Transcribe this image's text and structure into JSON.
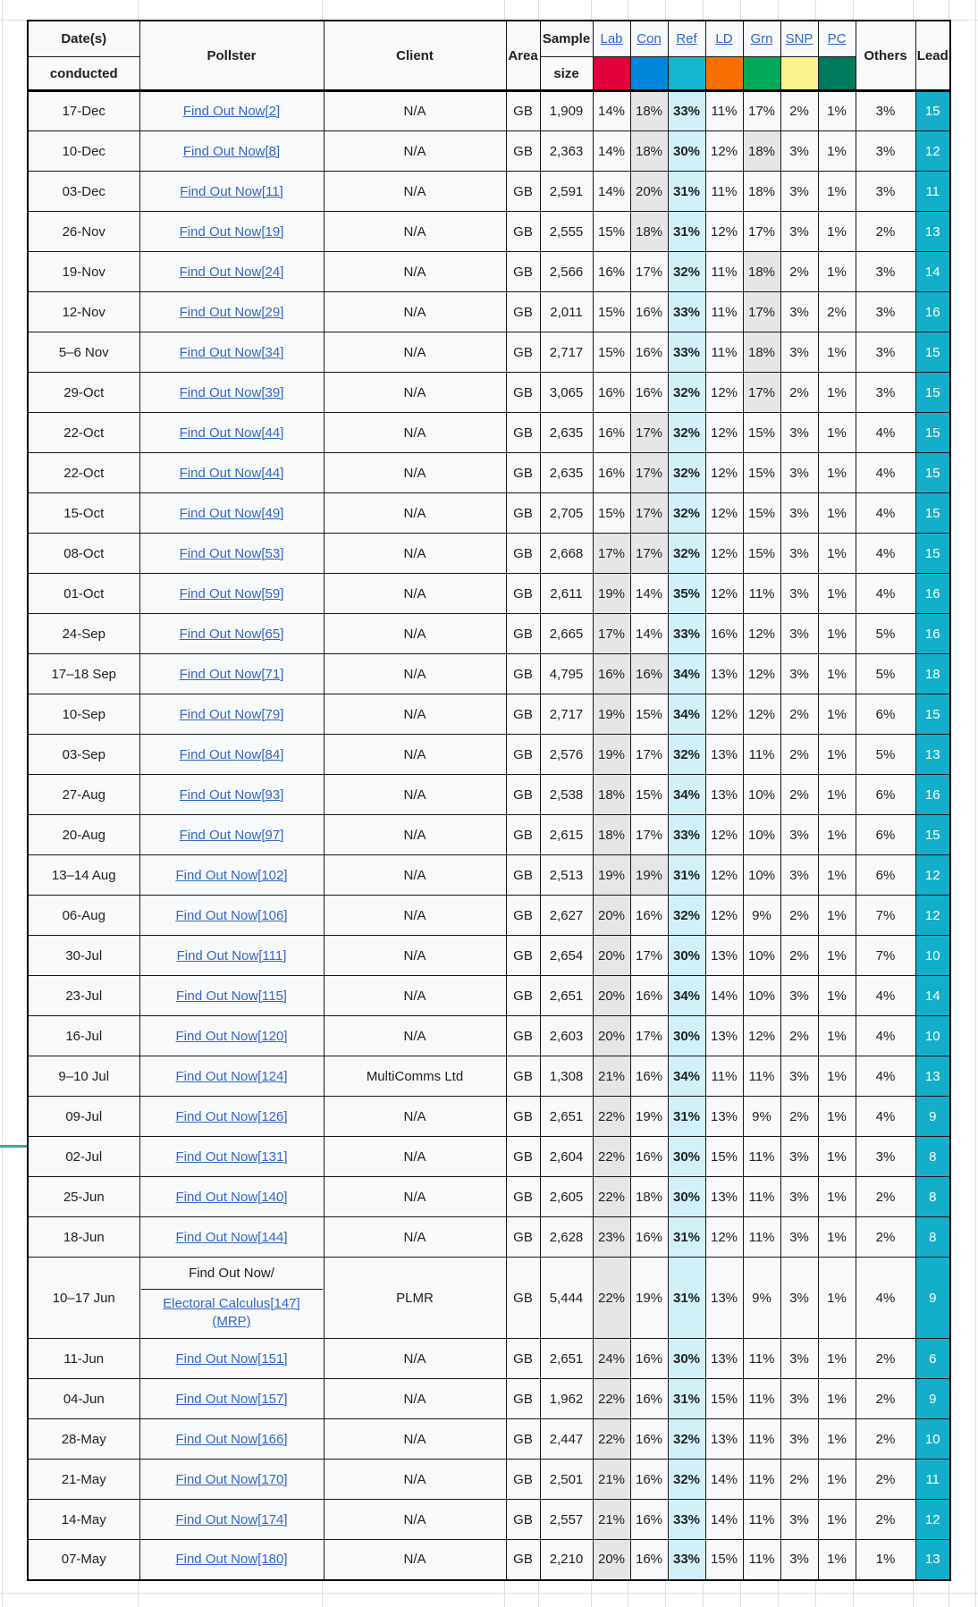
{
  "table": {
    "headers": {
      "dates_line1": "Date(s)",
      "dates_line2": "conducted",
      "pollster": "Pollster",
      "client": "Client",
      "area": "Area",
      "sample_line1": "Sample",
      "sample_line2": "size",
      "others": "Others",
      "lead": "Lead"
    },
    "parties": [
      {
        "key": "lab",
        "label": "Lab",
        "color": "#E4003B"
      },
      {
        "key": "con",
        "label": "Con",
        "color": "#0087DC"
      },
      {
        "key": "ref",
        "label": "Ref",
        "color": "#12B6CF"
      },
      {
        "key": "ld",
        "label": "LD",
        "color": "#F97000"
      },
      {
        "key": "grn",
        "label": "Grn",
        "color": "#02A95B"
      },
      {
        "key": "snp",
        "label": "SNP",
        "color": "#FDF38E"
      },
      {
        "key": "pc",
        "label": "PC",
        "color": "#007A5C"
      }
    ],
    "rows": [
      {
        "date": "17-Dec",
        "pollster": "Find Out Now[2]",
        "client": "N/A",
        "area": "GB",
        "sample": "1,909",
        "lab": "14%",
        "con": "18%",
        "ref": "33%",
        "ld": "11%",
        "grn": "17%",
        "snp": "2%",
        "pc": "1%",
        "others": "3%",
        "lead": "15",
        "best": "ref",
        "second": [
          "con"
        ]
      },
      {
        "date": "10-Dec",
        "pollster": "Find Out Now[8]",
        "client": "N/A",
        "area": "GB",
        "sample": "2,363",
        "lab": "14%",
        "con": "18%",
        "ref": "30%",
        "ld": "12%",
        "grn": "18%",
        "snp": "3%",
        "pc": "1%",
        "others": "3%",
        "lead": "12",
        "best": "ref",
        "second": [
          "con",
          "grn"
        ]
      },
      {
        "date": "03-Dec",
        "pollster": "Find Out Now[11]",
        "client": "N/A",
        "area": "GB",
        "sample": "2,591",
        "lab": "14%",
        "con": "20%",
        "ref": "31%",
        "ld": "11%",
        "grn": "18%",
        "snp": "3%",
        "pc": "1%",
        "others": "3%",
        "lead": "11",
        "best": "ref",
        "second": [
          "con"
        ]
      },
      {
        "date": "26-Nov",
        "pollster": "Find Out Now[19]",
        "client": "N/A",
        "area": "GB",
        "sample": "2,555",
        "lab": "15%",
        "con": "18%",
        "ref": "31%",
        "ld": "12%",
        "grn": "17%",
        "snp": "3%",
        "pc": "1%",
        "others": "2%",
        "lead": "13",
        "best": "ref",
        "second": [
          "con"
        ]
      },
      {
        "date": "19-Nov",
        "pollster": "Find Out Now[24]",
        "client": "N/A",
        "area": "GB",
        "sample": "2,566",
        "lab": "16%",
        "con": "17%",
        "ref": "32%",
        "ld": "11%",
        "grn": "18%",
        "snp": "2%",
        "pc": "1%",
        "others": "3%",
        "lead": "14",
        "best": "ref",
        "second": [
          "grn"
        ]
      },
      {
        "date": "12-Nov",
        "pollster": "Find Out Now[29]",
        "client": "N/A",
        "area": "GB",
        "sample": "2,011",
        "lab": "15%",
        "con": "16%",
        "ref": "33%",
        "ld": "11%",
        "grn": "17%",
        "snp": "3%",
        "pc": "2%",
        "others": "3%",
        "lead": "16",
        "best": "ref",
        "second": [
          "grn"
        ]
      },
      {
        "date": "5–6 Nov",
        "pollster": "Find Out Now[34]",
        "client": "N/A",
        "area": "GB",
        "sample": "2,717",
        "lab": "15%",
        "con": "16%",
        "ref": "33%",
        "ld": "11%",
        "grn": "18%",
        "snp": "3%",
        "pc": "1%",
        "others": "3%",
        "lead": "15",
        "best": "ref",
        "second": [
          "grn"
        ]
      },
      {
        "date": "29-Oct",
        "pollster": "Find Out Now[39]",
        "client": "N/A",
        "area": "GB",
        "sample": "3,065",
        "lab": "16%",
        "con": "16%",
        "ref": "32%",
        "ld": "12%",
        "grn": "17%",
        "snp": "2%",
        "pc": "1%",
        "others": "3%",
        "lead": "15",
        "best": "ref",
        "second": [
          "grn"
        ]
      },
      {
        "date": "22-Oct",
        "pollster": "Find Out Now[44]",
        "client": "N/A",
        "area": "GB",
        "sample": "2,635",
        "lab": "16%",
        "con": "17%",
        "ref": "32%",
        "ld": "12%",
        "grn": "15%",
        "snp": "3%",
        "pc": "1%",
        "others": "4%",
        "lead": "15",
        "best": "ref",
        "second": [
          "con"
        ]
      },
      {
        "date": "22-Oct",
        "pollster": "Find Out Now[44]",
        "client": "N/A",
        "area": "GB",
        "sample": "2,635",
        "lab": "16%",
        "con": "17%",
        "ref": "32%",
        "ld": "12%",
        "grn": "15%",
        "snp": "3%",
        "pc": "1%",
        "others": "4%",
        "lead": "15",
        "best": "ref",
        "second": [
          "con"
        ]
      },
      {
        "date": "15-Oct",
        "pollster": "Find Out Now[49]",
        "client": "N/A",
        "area": "GB",
        "sample": "2,705",
        "lab": "15%",
        "con": "17%",
        "ref": "32%",
        "ld": "12%",
        "grn": "15%",
        "snp": "3%",
        "pc": "1%",
        "others": "4%",
        "lead": "15",
        "best": "ref",
        "second": [
          "con"
        ]
      },
      {
        "date": "08-Oct",
        "pollster": "Find Out Now[53]",
        "client": "N/A",
        "area": "GB",
        "sample": "2,668",
        "lab": "17%",
        "con": "17%",
        "ref": "32%",
        "ld": "12%",
        "grn": "15%",
        "snp": "3%",
        "pc": "1%",
        "others": "4%",
        "lead": "15",
        "best": "ref",
        "second": [
          "lab",
          "con"
        ]
      },
      {
        "date": "01-Oct",
        "pollster": "Find Out Now[59]",
        "client": "N/A",
        "area": "GB",
        "sample": "2,611",
        "lab": "19%",
        "con": "14%",
        "ref": "35%",
        "ld": "12%",
        "grn": "11%",
        "snp": "3%",
        "pc": "1%",
        "others": "4%",
        "lead": "16",
        "best": "ref",
        "second": [
          "lab"
        ]
      },
      {
        "date": "24-Sep",
        "pollster": "Find Out Now[65]",
        "client": "N/A",
        "area": "GB",
        "sample": "2,665",
        "lab": "17%",
        "con": "14%",
        "ref": "33%",
        "ld": "16%",
        "grn": "12%",
        "snp": "3%",
        "pc": "1%",
        "others": "5%",
        "lead": "16",
        "best": "ref",
        "second": [
          "lab"
        ]
      },
      {
        "date": "17–18 Sep",
        "pollster": "Find Out Now[71]",
        "client": "N/A",
        "area": "GB",
        "sample": "4,795",
        "lab": "16%",
        "con": "16%",
        "ref": "34%",
        "ld": "13%",
        "grn": "12%",
        "snp": "3%",
        "pc": "1%",
        "others": "5%",
        "lead": "18",
        "best": "ref",
        "second": [
          "lab",
          "con"
        ]
      },
      {
        "date": "10-Sep",
        "pollster": "Find Out Now[79]",
        "client": "N/A",
        "area": "GB",
        "sample": "2,717",
        "lab": "19%",
        "con": "15%",
        "ref": "34%",
        "ld": "12%",
        "grn": "12%",
        "snp": "2%",
        "pc": "1%",
        "others": "6%",
        "lead": "15",
        "best": "ref",
        "second": [
          "lab"
        ]
      },
      {
        "date": "03-Sep",
        "pollster": "Find Out Now[84]",
        "client": "N/A",
        "area": "GB",
        "sample": "2,576",
        "lab": "19%",
        "con": "17%",
        "ref": "32%",
        "ld": "13%",
        "grn": "11%",
        "snp": "2%",
        "pc": "1%",
        "others": "5%",
        "lead": "13",
        "best": "ref",
        "second": [
          "lab"
        ]
      },
      {
        "date": "27-Aug",
        "pollster": "Find Out Now[93]",
        "client": "N/A",
        "area": "GB",
        "sample": "2,538",
        "lab": "18%",
        "con": "15%",
        "ref": "34%",
        "ld": "13%",
        "grn": "10%",
        "snp": "2%",
        "pc": "1%",
        "others": "6%",
        "lead": "16",
        "best": "ref",
        "second": [
          "lab"
        ]
      },
      {
        "date": "20-Aug",
        "pollster": "Find Out Now[97]",
        "client": "N/A",
        "area": "GB",
        "sample": "2,615",
        "lab": "18%",
        "con": "17%",
        "ref": "33%",
        "ld": "12%",
        "grn": "10%",
        "snp": "3%",
        "pc": "1%",
        "others": "6%",
        "lead": "15",
        "best": "ref",
        "second": [
          "lab"
        ]
      },
      {
        "date": "13–14 Aug",
        "pollster": "Find Out Now[102]",
        "client": "N/A",
        "area": "GB",
        "sample": "2,513",
        "lab": "19%",
        "con": "19%",
        "ref": "31%",
        "ld": "12%",
        "grn": "10%",
        "snp": "3%",
        "pc": "1%",
        "others": "6%",
        "lead": "12",
        "best": "ref",
        "second": [
          "lab",
          "con"
        ]
      },
      {
        "date": "06-Aug",
        "pollster": "Find Out Now[106]",
        "client": "N/A",
        "area": "GB",
        "sample": "2,627",
        "lab": "20%",
        "con": "16%",
        "ref": "32%",
        "ld": "12%",
        "grn": "9%",
        "snp": "2%",
        "pc": "1%",
        "others": "7%",
        "lead": "12",
        "best": "ref",
        "second": [
          "lab"
        ]
      },
      {
        "date": "30-Jul",
        "pollster": "Find Out Now[111]",
        "client": "N/A",
        "area": "GB",
        "sample": "2,654",
        "lab": "20%",
        "con": "17%",
        "ref": "30%",
        "ld": "13%",
        "grn": "10%",
        "snp": "2%",
        "pc": "1%",
        "others": "7%",
        "lead": "10",
        "best": "ref",
        "second": [
          "lab"
        ]
      },
      {
        "date": "23-Jul",
        "pollster": "Find Out Now[115]",
        "client": "N/A",
        "area": "GB",
        "sample": "2,651",
        "lab": "20%",
        "con": "16%",
        "ref": "34%",
        "ld": "14%",
        "grn": "10%",
        "snp": "3%",
        "pc": "1%",
        "others": "4%",
        "lead": "14",
        "best": "ref",
        "second": [
          "lab"
        ]
      },
      {
        "date": "16-Jul",
        "pollster": "Find Out Now[120]",
        "client": "N/A",
        "area": "GB",
        "sample": "2,603",
        "lab": "20%",
        "con": "17%",
        "ref": "30%",
        "ld": "13%",
        "grn": "12%",
        "snp": "2%",
        "pc": "1%",
        "others": "4%",
        "lead": "10",
        "best": "ref",
        "second": [
          "lab"
        ]
      },
      {
        "date": "9–10 Jul",
        "pollster": "Find Out Now[124]",
        "client": "MultiComms Ltd",
        "area": "GB",
        "sample": "1,308",
        "lab": "21%",
        "con": "16%",
        "ref": "34%",
        "ld": "11%",
        "grn": "11%",
        "snp": "3%",
        "pc": "1%",
        "others": "4%",
        "lead": "13",
        "best": "ref",
        "second": [
          "lab"
        ]
      },
      {
        "date": "09-Jul",
        "pollster": "Find Out Now[126]",
        "client": "N/A",
        "area": "GB",
        "sample": "2,651",
        "lab": "22%",
        "con": "19%",
        "ref": "31%",
        "ld": "13%",
        "grn": "9%",
        "snp": "2%",
        "pc": "1%",
        "others": "4%",
        "lead": "9",
        "best": "ref",
        "second": [
          "lab"
        ]
      },
      {
        "date": "02-Jul",
        "pollster": "Find Out Now[131]",
        "client": "N/A",
        "area": "GB",
        "sample": "2,604",
        "lab": "22%",
        "con": "16%",
        "ref": "30%",
        "ld": "15%",
        "grn": "11%",
        "snp": "3%",
        "pc": "1%",
        "others": "3%",
        "lead": "8",
        "best": "ref",
        "second": [
          "lab"
        ]
      },
      {
        "date": "25-Jun",
        "pollster": "Find Out Now[140]",
        "client": "N/A",
        "area": "GB",
        "sample": "2,605",
        "lab": "22%",
        "con": "18%",
        "ref": "30%",
        "ld": "13%",
        "grn": "11%",
        "snp": "3%",
        "pc": "1%",
        "others": "2%",
        "lead": "8",
        "best": "ref",
        "second": [
          "lab"
        ]
      },
      {
        "date": "18-Jun",
        "pollster": "Find Out Now[144]",
        "client": "N/A",
        "area": "GB",
        "sample": "2,628",
        "lab": "23%",
        "con": "16%",
        "ref": "31%",
        "ld": "12%",
        "grn": "11%",
        "snp": "3%",
        "pc": "1%",
        "others": "2%",
        "lead": "8",
        "best": "ref",
        "second": [
          "lab"
        ]
      },
      {
        "date": "10–17 Jun",
        "pollster": "Find Out Now/",
        "pollster_link2": "Electoral Calculus[147] (MRP)",
        "client": "PLMR",
        "area": "GB",
        "sample": "5,444",
        "lab": "22%",
        "con": "19%",
        "ref": "31%",
        "ld": "13%",
        "grn": "9%",
        "snp": "3%",
        "pc": "1%",
        "others": "4%",
        "lead": "9",
        "best": "ref",
        "second": [
          "lab"
        ],
        "tall": true
      },
      {
        "date": "11-Jun",
        "pollster": "Find Out Now[151]",
        "client": "N/A",
        "area": "GB",
        "sample": "2,651",
        "lab": "24%",
        "con": "16%",
        "ref": "30%",
        "ld": "13%",
        "grn": "11%",
        "snp": "3%",
        "pc": "1%",
        "others": "2%",
        "lead": "6",
        "best": "ref",
        "second": [
          "lab"
        ]
      },
      {
        "date": "04-Jun",
        "pollster": "Find Out Now[157]",
        "client": "N/A",
        "area": "GB",
        "sample": "1,962",
        "lab": "22%",
        "con": "16%",
        "ref": "31%",
        "ld": "15%",
        "grn": "11%",
        "snp": "3%",
        "pc": "1%",
        "others": "2%",
        "lead": "9",
        "best": "ref",
        "second": [
          "lab"
        ]
      },
      {
        "date": "28-May",
        "pollster": "Find Out Now[166]",
        "client": "N/A",
        "area": "GB",
        "sample": "2,447",
        "lab": "22%",
        "con": "16%",
        "ref": "32%",
        "ld": "13%",
        "grn": "11%",
        "snp": "3%",
        "pc": "1%",
        "others": "2%",
        "lead": "10",
        "best": "ref",
        "second": [
          "lab"
        ]
      },
      {
        "date": "21-May",
        "pollster": "Find Out Now[170]",
        "client": "N/A",
        "area": "GB",
        "sample": "2,501",
        "lab": "21%",
        "con": "16%",
        "ref": "32%",
        "ld": "14%",
        "grn": "11%",
        "snp": "2%",
        "pc": "1%",
        "others": "2%",
        "lead": "11",
        "best": "ref",
        "second": [
          "lab"
        ]
      },
      {
        "date": "14-May",
        "pollster": "Find Out Now[174]",
        "client": "N/A",
        "area": "GB",
        "sample": "2,557",
        "lab": "21%",
        "con": "16%",
        "ref": "33%",
        "ld": "14%",
        "grn": "11%",
        "snp": "3%",
        "pc": "1%",
        "others": "2%",
        "lead": "12",
        "best": "ref",
        "second": [
          "lab"
        ]
      },
      {
        "date": "07-May",
        "pollster": "Find Out Now[180]",
        "client": "N/A",
        "area": "GB",
        "sample": "2,210",
        "lab": "20%",
        "con": "16%",
        "ref": "33%",
        "ld": "15%",
        "grn": "11%",
        "snp": "3%",
        "pc": "1%",
        "others": "1%",
        "lead": "13",
        "best": "ref",
        "second": [
          "lab"
        ]
      }
    ]
  },
  "colors": {
    "link": "#3366CC",
    "win_highlight": "#D2F0F8",
    "second_highlight": "#E6E6E6",
    "lead_background": "#13AEC9",
    "gridline": "#DCDEE0",
    "cell_background": "#F8F9FA"
  }
}
